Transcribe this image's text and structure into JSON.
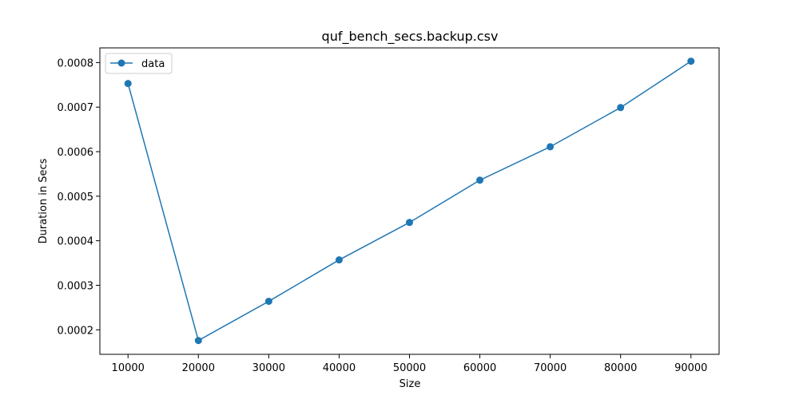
{
  "chart_data": {
    "type": "line",
    "title": "quf_bench_secs.backup.csv",
    "xlabel": "Size",
    "ylabel": "Duration in Secs",
    "x_ticks": [
      "10000",
      "20000",
      "30000",
      "40000",
      "50000",
      "60000",
      "70000",
      "80000",
      "90000"
    ],
    "y_ticks": [
      "0.0002",
      "0.0003",
      "0.0004",
      "0.0005",
      "0.0006",
      "0.0007",
      "0.0008"
    ],
    "xlim": [
      6000,
      94000
    ],
    "ylim": [
      0.000145,
      0.000833
    ],
    "grid": false,
    "legend_position": "top-left",
    "series": [
      {
        "name": "data",
        "color": "#1f77b4",
        "marker": "circle",
        "x": [
          10000,
          20000,
          30000,
          40000,
          50000,
          60000,
          70000,
          80000,
          90000
        ],
        "y": [
          0.000753,
          0.000176,
          0.000264,
          0.000357,
          0.000441,
          0.000536,
          0.000611,
          0.000699,
          0.000803
        ]
      }
    ]
  }
}
